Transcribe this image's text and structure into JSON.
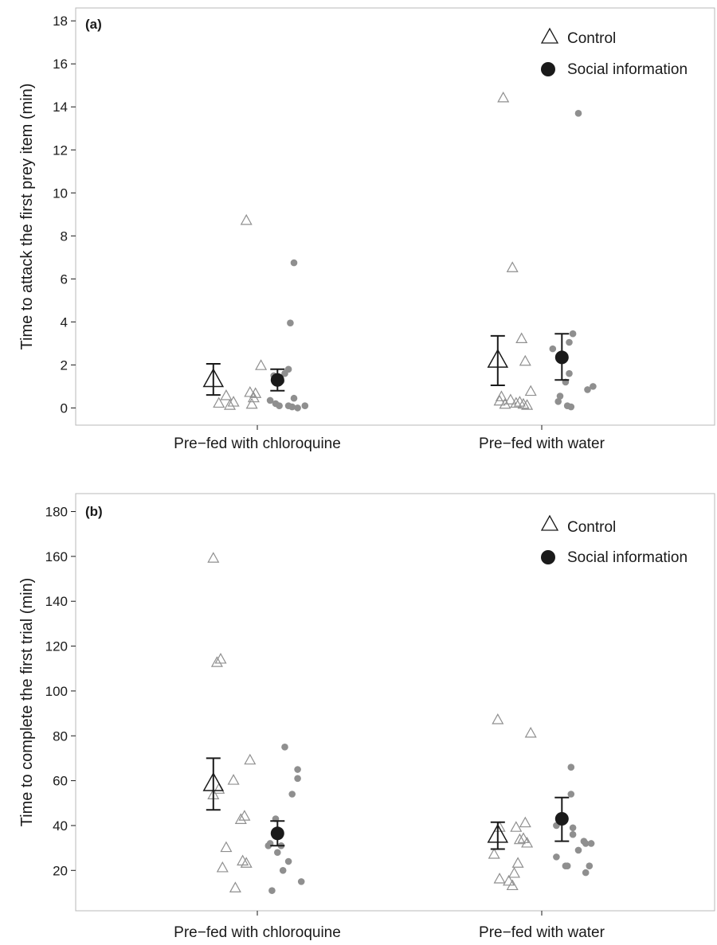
{
  "chart_data": [
    {
      "type": "scatter",
      "panel_label": "(a)",
      "ylabel": "Time to attack the first prey item (min)",
      "categories": [
        "Pre−fed with chloroquine",
        "Pre−fed with water"
      ],
      "ylim": [
        -0.8,
        18.6
      ],
      "yticks": [
        0,
        2,
        4,
        6,
        8,
        10,
        12,
        14,
        16,
        18
      ],
      "tick_labels": [
        "0",
        "2",
        "4",
        "6",
        "8",
        "10",
        "12",
        "14",
        "16",
        "18"
      ],
      "legend": {
        "position": "top-right",
        "entries": [
          "Control",
          "Social information"
        ]
      },
      "grid": false,
      "series": [
        {
          "name": "Control",
          "marker": "open-triangle",
          "raw": [
            [
              [
                -0.21,
                0.2
              ],
              [
                -0.17,
                0.55
              ],
              [
                -0.15,
                0.1
              ],
              [
                -0.13,
                0.25
              ],
              [
                -0.06,
                8.7
              ],
              [
                -0.04,
                0.7
              ],
              [
                -0.03,
                0.15
              ],
              [
                -0.02,
                0.45
              ],
              [
                -0.01,
                0.65
              ],
              [
                0.02,
                1.95
              ]
            ],
            [
              [
                -0.21,
                14.4
              ],
              [
                -0.23,
                0.3
              ],
              [
                -0.22,
                0.5
              ],
              [
                -0.2,
                0.15
              ],
              [
                -0.16,
                6.5
              ],
              [
                -0.17,
                0.35
              ],
              [
                -0.14,
                0.2
              ],
              [
                -0.12,
                0.25
              ],
              [
                -0.11,
                3.2
              ],
              [
                -0.1,
                0.15
              ],
              [
                -0.09,
                2.15
              ],
              [
                -0.08,
                0.1
              ],
              [
                -0.06,
                0.75
              ]
            ]
          ],
          "mean": [
            1.3,
            2.2
          ],
          "error": [
            [
              0.6,
              2.05
            ],
            [
              1.05,
              3.35
            ]
          ]
        },
        {
          "name": "Social information",
          "marker": "filled-circle",
          "raw": [
            [
              [
                0.07,
                0.35
              ],
              [
                0.09,
                1.5
              ],
              [
                0.1,
                0.2
              ],
              [
                0.12,
                0.1
              ],
              [
                0.13,
                1.25
              ],
              [
                0.15,
                1.6
              ],
              [
                0.17,
                1.8
              ],
              [
                0.17,
                0.1
              ],
              [
                0.18,
                3.95
              ],
              [
                0.19,
                0.05
              ],
              [
                0.2,
                0.45
              ],
              [
                0.2,
                6.75
              ],
              [
                0.22,
                0.0
              ],
              [
                0.26,
                0.1
              ]
            ],
            [
              [
                0.06,
                2.75
              ],
              [
                0.09,
                0.3
              ],
              [
                0.1,
                0.55
              ],
              [
                0.13,
                1.2
              ],
              [
                0.14,
                0.1
              ],
              [
                0.15,
                1.6
              ],
              [
                0.15,
                3.05
              ],
              [
                0.16,
                0.05
              ],
              [
                0.17,
                3.45
              ],
              [
                0.2,
                13.7
              ],
              [
                0.25,
                0.85
              ],
              [
                0.28,
                1.0
              ]
            ]
          ],
          "mean": [
            1.3,
            2.35
          ],
          "error": [
            [
              0.8,
              1.8
            ],
            [
              1.3,
              3.45
            ]
          ]
        }
      ]
    },
    {
      "type": "scatter",
      "panel_label": "(b)",
      "ylabel": "Time to complete the first trial (min)",
      "categories": [
        "Pre−fed with chloroquine",
        "Pre−fed with water"
      ],
      "ylim": [
        2,
        188
      ],
      "yticks": [
        20,
        40,
        60,
        80,
        100,
        120,
        140,
        160,
        180
      ],
      "tick_labels": [
        "20",
        "40",
        "60",
        "80",
        "100",
        "120",
        "140",
        "160",
        "180"
      ],
      "legend": {
        "position": "top-right",
        "entries": [
          "Control",
          "Social information"
        ]
      },
      "grid": false,
      "series": [
        {
          "name": "Control",
          "marker": "open-triangle",
          "raw": [
            [
              [
                -0.24,
                53.5
              ],
              [
                -0.24,
                159
              ],
              [
                -0.22,
                112.5
              ],
              [
                -0.21,
                56
              ],
              [
                -0.2,
                114
              ],
              [
                -0.19,
                21
              ],
              [
                -0.17,
                30
              ],
              [
                -0.13,
                60
              ],
              [
                -0.12,
                12
              ],
              [
                -0.09,
                42.5
              ],
              [
                -0.08,
                24
              ],
              [
                -0.07,
                44
              ],
              [
                -0.06,
                23
              ],
              [
                -0.04,
                69
              ]
            ],
            [
              [
                -0.26,
                27
              ],
              [
                -0.24,
                87
              ],
              [
                -0.23,
                39
              ],
              [
                -0.23,
                16
              ],
              [
                -0.18,
                15
              ],
              [
                -0.16,
                13
              ],
              [
                -0.15,
                18.5
              ],
              [
                -0.14,
                39
              ],
              [
                -0.13,
                23
              ],
              [
                -0.12,
                33.5
              ],
              [
                -0.1,
                34
              ],
              [
                -0.09,
                41
              ],
              [
                -0.08,
                32
              ],
              [
                -0.06,
                81
              ]
            ]
          ],
          "mean": [
            58.5,
            35.5
          ],
          "error": [
            [
              47,
              70
            ],
            [
              29.5,
              41.5
            ]
          ]
        },
        {
          "name": "Social information",
          "marker": "filled-circle",
          "raw": [
            [
              [
                0.06,
                31
              ],
              [
                0.07,
                32
              ],
              [
                0.08,
                11
              ],
              [
                0.1,
                43
              ],
              [
                0.11,
                28
              ],
              [
                0.13,
                31
              ],
              [
                0.14,
                20
              ],
              [
                0.15,
                75
              ],
              [
                0.17,
                24
              ],
              [
                0.19,
                54
              ],
              [
                0.22,
                65
              ],
              [
                0.22,
                61
              ],
              [
                0.24,
                15
              ]
            ],
            [
              [
                0.08,
                40
              ],
              [
                0.08,
                26
              ],
              [
                0.13,
                22
              ],
              [
                0.14,
                22
              ],
              [
                0.16,
                66
              ],
              [
                0.16,
                54
              ],
              [
                0.17,
                36
              ],
              [
                0.17,
                39
              ],
              [
                0.2,
                29
              ],
              [
                0.23,
                33
              ],
              [
                0.24,
                32
              ],
              [
                0.24,
                19
              ],
              [
                0.26,
                22
              ],
              [
                0.27,
                32
              ]
            ]
          ],
          "mean": [
            36.5,
            43
          ],
          "error": [
            [
              31,
              42
            ],
            [
              33,
              52.5
            ]
          ]
        }
      ]
    }
  ],
  "colors": {
    "raw_points": "#8f8f8f",
    "summary": "#1a1a1a",
    "axis": "#1a1a1a",
    "frame": "#b8b8b8"
  }
}
